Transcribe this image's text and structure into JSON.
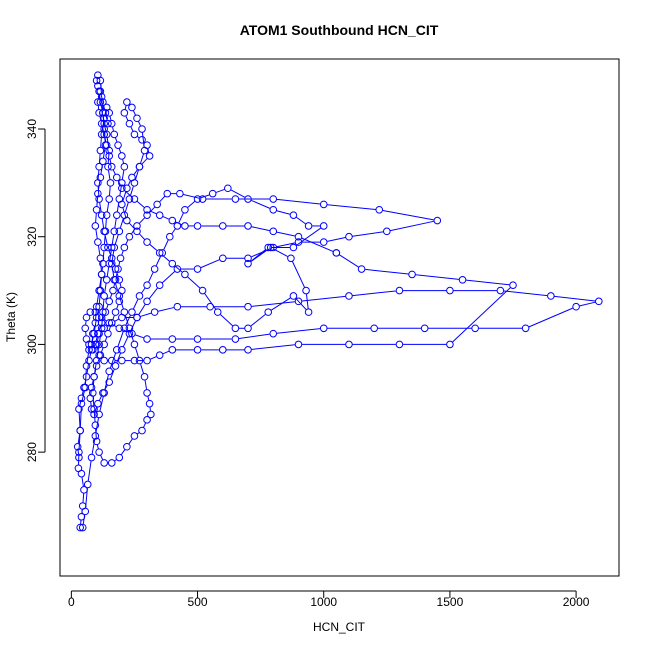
{
  "chart_data": {
    "type": "line",
    "title": "ATOM1 Southbound HCN_CIT",
    "xlabel": "HCN_CIT",
    "ylabel": "Theta (K)",
    "xlim": [
      -45,
      2170
    ],
    "ylim": [
      257,
      353
    ],
    "xticks": [
      0,
      500,
      1000,
      1500,
      2000
    ],
    "yticks": [
      280,
      300,
      320,
      340
    ],
    "grid": false,
    "legend": "none",
    "color": "#0000ff",
    "marker": "open-circle",
    "series": [
      {
        "points": [
          [
            30,
            279
          ],
          [
            25,
            281
          ],
          [
            35,
            284
          ],
          [
            40,
            289
          ],
          [
            55,
            292
          ],
          [
            60,
            296
          ],
          [
            70,
            299
          ],
          [
            80,
            300
          ],
          [
            90,
            302
          ],
          [
            100,
            305
          ],
          [
            110,
            307
          ],
          [
            115,
            310
          ],
          [
            120,
            313
          ],
          [
            125,
            315
          ],
          [
            130,
            318
          ],
          [
            135,
            321
          ],
          [
            140,
            324
          ],
          [
            150,
            327
          ],
          [
            155,
            330
          ],
          [
            145,
            333
          ],
          [
            150,
            336
          ],
          [
            140,
            339
          ],
          [
            130,
            341
          ],
          [
            125,
            343
          ],
          [
            115,
            345
          ],
          [
            110,
            347
          ],
          [
            105,
            348
          ],
          [
            100,
            349
          ],
          [
            105,
            350
          ],
          [
            115,
            349
          ],
          [
            120,
            346
          ],
          [
            125,
            343
          ],
          [
            130,
            340
          ],
          [
            135,
            337
          ],
          [
            125,
            334
          ],
          [
            115,
            331
          ],
          [
            105,
            328
          ],
          [
            100,
            325
          ],
          [
            95,
            322
          ],
          [
            105,
            319
          ],
          [
            115,
            316
          ],
          [
            120,
            313
          ],
          [
            110,
            310
          ],
          [
            100,
            307
          ],
          [
            95,
            304
          ],
          [
            85,
            302
          ],
          [
            80,
            299
          ],
          [
            70,
            297
          ],
          [
            60,
            294
          ],
          [
            50,
            292
          ],
          [
            40,
            290
          ],
          [
            30,
            288
          ],
          [
            35,
            284
          ],
          [
            30,
            280
          ],
          [
            28,
            277
          ],
          [
            40,
            276
          ],
          [
            50,
            273
          ],
          [
            45,
            270
          ],
          [
            40,
            268
          ],
          [
            35,
            266
          ],
          [
            45,
            266
          ],
          [
            55,
            269
          ],
          [
            65,
            274
          ],
          [
            80,
            279
          ],
          [
            95,
            283
          ],
          [
            110,
            287
          ],
          [
            130,
            291
          ],
          [
            150,
            295
          ],
          [
            180,
            299
          ],
          [
            210,
            303
          ],
          [
            240,
            306
          ],
          [
            270,
            309
          ],
          [
            300,
            311
          ],
          [
            330,
            314
          ],
          [
            360,
            317
          ],
          [
            390,
            320
          ],
          [
            420,
            322
          ],
          [
            450,
            325
          ],
          [
            500,
            327
          ],
          [
            560,
            328
          ],
          [
            620,
            329
          ],
          [
            700,
            327
          ],
          [
            800,
            325
          ],
          [
            880,
            324
          ],
          [
            940,
            322
          ],
          [
            1000,
            322
          ],
          [
            880,
            318
          ],
          [
            780,
            318
          ],
          [
            700,
            315
          ],
          [
            790,
            318
          ],
          [
            870,
            316
          ],
          [
            930,
            310
          ],
          [
            940,
            306
          ],
          [
            880,
            309
          ],
          [
            780,
            306
          ],
          [
            700,
            303
          ],
          [
            650,
            303
          ],
          [
            580,
            306
          ],
          [
            520,
            310
          ],
          [
            450,
            313
          ],
          [
            400,
            315
          ],
          [
            350,
            317
          ],
          [
            300,
            319
          ],
          [
            260,
            321
          ],
          [
            220,
            323
          ],
          [
            200,
            326
          ],
          [
            220,
            329
          ],
          [
            240,
            331
          ],
          [
            270,
            333
          ],
          [
            310,
            335
          ],
          [
            300,
            337
          ],
          [
            280,
            338
          ],
          [
            250,
            339
          ],
          [
            230,
            341
          ],
          [
            210,
            343
          ],
          [
            220,
            345
          ],
          [
            240,
            344
          ],
          [
            260,
            342
          ],
          [
            280,
            340
          ],
          [
            290,
            336
          ],
          [
            270,
            333
          ],
          [
            250,
            330
          ],
          [
            230,
            327
          ],
          [
            210,
            324
          ],
          [
            190,
            321
          ],
          [
            170,
            318
          ],
          [
            160,
            315
          ],
          [
            170,
            312
          ],
          [
            190,
            309
          ],
          [
            210,
            306
          ],
          [
            230,
            303
          ],
          [
            250,
            300
          ],
          [
            270,
            297
          ],
          [
            290,
            294
          ],
          [
            300,
            291
          ],
          [
            310,
            289
          ],
          [
            315,
            287
          ],
          [
            300,
            286
          ],
          [
            280,
            284
          ],
          [
            250,
            283
          ],
          [
            220,
            281
          ],
          [
            190,
            279
          ],
          [
            160,
            278
          ],
          [
            130,
            278
          ],
          [
            110,
            280
          ],
          [
            100,
            282
          ],
          [
            95,
            285
          ],
          [
            90,
            288
          ],
          [
            85,
            291
          ],
          [
            90,
            294
          ],
          [
            100,
            297
          ],
          [
            110,
            300
          ],
          [
            120,
            303
          ],
          [
            125,
            306
          ],
          [
            130,
            309
          ],
          [
            140,
            312
          ],
          [
            150,
            315
          ],
          [
            160,
            318
          ],
          [
            170,
            321
          ],
          [
            180,
            324
          ],
          [
            190,
            327
          ],
          [
            200,
            330
          ],
          [
            210,
            333
          ],
          [
            200,
            335
          ],
          [
            185,
            337
          ],
          [
            170,
            339
          ],
          [
            160,
            341
          ],
          [
            150,
            343
          ],
          [
            140,
            344
          ],
          [
            130,
            342
          ],
          [
            120,
            339
          ],
          [
            115,
            336
          ],
          [
            110,
            333
          ],
          [
            105,
            330
          ],
          [
            110,
            327
          ],
          [
            120,
            324
          ],
          [
            130,
            321
          ],
          [
            145,
            318
          ],
          [
            160,
            316
          ],
          [
            175,
            314
          ],
          [
            190,
            312
          ],
          [
            200,
            310
          ],
          [
            190,
            308
          ],
          [
            175,
            306
          ],
          [
            160,
            304
          ],
          [
            145,
            302
          ],
          [
            130,
            300
          ],
          [
            115,
            298
          ],
          [
            100,
            296
          ],
          [
            90,
            294
          ],
          [
            80,
            292
          ],
          [
            75,
            290
          ],
          [
            80,
            288
          ],
          [
            90,
            287
          ],
          [
            105,
            289
          ],
          [
            125,
            291
          ],
          [
            150,
            293
          ],
          [
            175,
            296
          ],
          [
            200,
            299
          ],
          [
            230,
            302
          ],
          [
            260,
            305
          ],
          [
            300,
            308
          ],
          [
            350,
            311
          ],
          [
            420,
            314
          ],
          [
            500,
            314
          ],
          [
            600,
            316
          ],
          [
            700,
            316
          ],
          [
            800,
            318
          ],
          [
            900,
            319
          ],
          [
            1000,
            319
          ],
          [
            1100,
            320
          ],
          [
            1250,
            321
          ],
          [
            1450,
            323
          ],
          [
            1220,
            325
          ],
          [
            1000,
            326
          ],
          [
            800,
            327
          ],
          [
            650,
            327
          ],
          [
            520,
            327
          ],
          [
            430,
            328
          ],
          [
            380,
            328
          ],
          [
            340,
            326
          ],
          [
            300,
            324
          ],
          [
            260,
            322
          ],
          [
            230,
            320
          ],
          [
            210,
            318
          ],
          [
            195,
            316
          ],
          [
            185,
            314
          ],
          [
            175,
            312
          ],
          [
            165,
            310
          ],
          [
            150,
            308
          ],
          [
            135,
            306
          ],
          [
            120,
            304
          ],
          [
            105,
            302
          ],
          [
            95,
            300
          ],
          [
            85,
            299
          ],
          [
            70,
            300
          ],
          [
            60,
            301
          ],
          [
            55,
            303
          ],
          [
            60,
            305
          ],
          [
            75,
            306
          ],
          [
            95,
            306
          ],
          [
            120,
            305
          ],
          [
            150,
            304
          ],
          [
            190,
            303
          ],
          [
            240,
            302
          ],
          [
            300,
            301
          ],
          [
            400,
            301
          ],
          [
            500,
            301
          ],
          [
            650,
            301
          ],
          [
            800,
            302
          ],
          [
            1000,
            303
          ],
          [
            1200,
            303
          ],
          [
            1400,
            303
          ],
          [
            1600,
            303
          ],
          [
            1800,
            303
          ],
          [
            2000,
            307
          ],
          [
            2090,
            308
          ],
          [
            1900,
            309
          ],
          [
            1700,
            310
          ],
          [
            1500,
            310
          ],
          [
            1300,
            310
          ],
          [
            1100,
            309
          ],
          [
            900,
            308
          ],
          [
            700,
            307
          ],
          [
            550,
            307
          ],
          [
            420,
            307
          ],
          [
            330,
            306
          ],
          [
            260,
            305
          ],
          [
            200,
            305
          ],
          [
            160,
            304
          ],
          [
            130,
            303
          ],
          [
            110,
            302
          ],
          [
            100,
            300
          ],
          [
            110,
            298
          ],
          [
            130,
            297
          ],
          [
            160,
            297
          ],
          [
            200,
            297
          ],
          [
            250,
            297
          ],
          [
            300,
            297
          ],
          [
            350,
            298
          ],
          [
            400,
            299
          ],
          [
            500,
            299
          ],
          [
            600,
            299
          ],
          [
            700,
            299
          ],
          [
            900,
            300
          ],
          [
            1100,
            300
          ],
          [
            1300,
            300
          ],
          [
            1500,
            300
          ],
          [
            1750,
            311
          ],
          [
            1550,
            312
          ],
          [
            1350,
            313
          ],
          [
            1150,
            314
          ],
          [
            1050,
            317
          ],
          [
            1050,
            317
          ],
          [
            900,
            320
          ],
          [
            800,
            321
          ],
          [
            700,
            322
          ],
          [
            600,
            322
          ],
          [
            500,
            322
          ],
          [
            450,
            322
          ],
          [
            400,
            323
          ],
          [
            350,
            324
          ],
          [
            300,
            325
          ],
          [
            250,
            327
          ],
          [
            200,
            329
          ],
          [
            180,
            331
          ],
          [
            160,
            333
          ],
          [
            150,
            335
          ],
          [
            140,
            337
          ],
          [
            130,
            339
          ],
          [
            120,
            341
          ],
          [
            110,
            343
          ],
          [
            105,
            345
          ],
          [
            115,
            347
          ],
          [
            125,
            345
          ],
          [
            135,
            343
          ],
          [
            145,
            341
          ]
        ]
      }
    ]
  }
}
